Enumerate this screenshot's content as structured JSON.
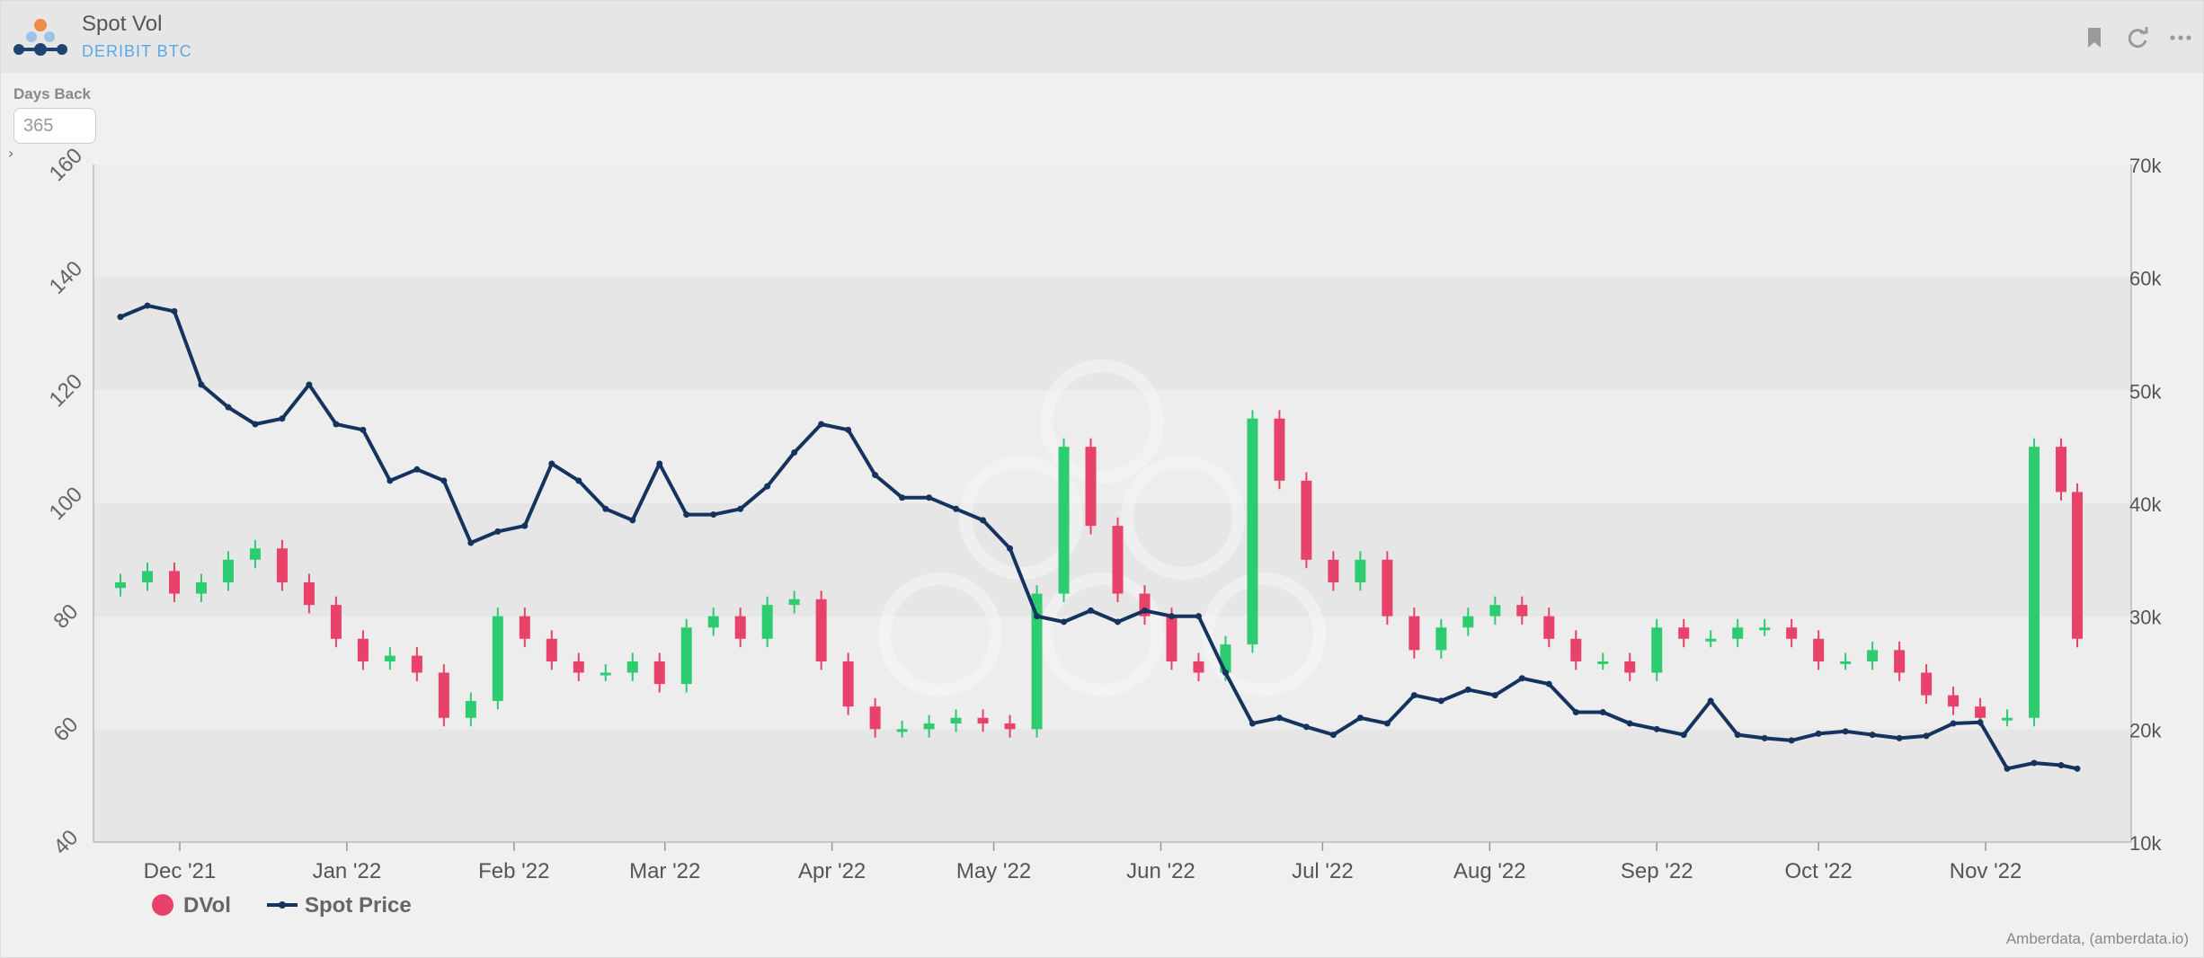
{
  "header": {
    "title": "Spot Vol",
    "subtitle": "DERIBIT BTC",
    "icons": [
      "bookmark-icon",
      "refresh-icon",
      "more-icon"
    ]
  },
  "controls": {
    "days_back_label": "Days Back",
    "days_back_value": "365"
  },
  "credit": "Amberdata, (amberdata.io)",
  "colors": {
    "up": "#2ecc71",
    "down": "#e8416a",
    "spot_line": "#14335e",
    "band": "#e6e6e6",
    "plot_bg": "#ededed"
  },
  "chart_data": {
    "type": "candlestick+line",
    "title": "",
    "y_left": {
      "range": [
        40,
        160
      ],
      "ticks": [
        40,
        60,
        80,
        100,
        120,
        140,
        160
      ]
    },
    "y_right": {
      "range": [
        10000,
        70000
      ],
      "ticks": [
        "10k",
        "20k",
        "30k",
        "40k",
        "50k",
        "60k",
        "70k"
      ]
    },
    "x_ticks": [
      {
        "label": "Dec '21",
        "date": "2021-12-01"
      },
      {
        "label": "Jan '22",
        "date": "2022-01-01"
      },
      {
        "label": "Feb '22",
        "date": "2022-02-01"
      },
      {
        "label": "Mar '22",
        "date": "2022-03-01"
      },
      {
        "label": "Apr '22",
        "date": "2022-04-01"
      },
      {
        "label": "May '22",
        "date": "2022-05-01"
      },
      {
        "label": "Jun '22",
        "date": "2022-06-01"
      },
      {
        "label": "Jul '22",
        "date": "2022-07-01"
      },
      {
        "label": "Aug '22",
        "date": "2022-08-01"
      },
      {
        "label": "Sep '22",
        "date": "2022-09-01"
      },
      {
        "label": "Oct '22",
        "date": "2022-10-01"
      },
      {
        "label": "Nov '22",
        "date": "2022-11-01"
      }
    ],
    "legend": [
      {
        "name": "DVol",
        "marker": "circle"
      },
      {
        "name": "Spot Price",
        "marker": "line"
      }
    ],
    "dvol_series": {
      "name": "DVol",
      "dates": [
        "2021-11-20",
        "2021-11-25",
        "2021-11-30",
        "2021-12-05",
        "2021-12-10",
        "2021-12-15",
        "2021-12-20",
        "2021-12-25",
        "2021-12-30",
        "2022-01-04",
        "2022-01-09",
        "2022-01-14",
        "2022-01-19",
        "2022-01-24",
        "2022-01-29",
        "2022-02-03",
        "2022-02-08",
        "2022-02-13",
        "2022-02-18",
        "2022-02-23",
        "2022-02-28",
        "2022-03-05",
        "2022-03-10",
        "2022-03-15",
        "2022-03-20",
        "2022-03-25",
        "2022-03-30",
        "2022-04-04",
        "2022-04-09",
        "2022-04-14",
        "2022-04-19",
        "2022-04-24",
        "2022-04-29",
        "2022-05-04",
        "2022-05-09",
        "2022-05-14",
        "2022-05-19",
        "2022-05-24",
        "2022-05-29",
        "2022-06-03",
        "2022-06-08",
        "2022-06-13",
        "2022-06-18",
        "2022-06-23",
        "2022-06-28",
        "2022-07-03",
        "2022-07-08",
        "2022-07-13",
        "2022-07-18",
        "2022-07-23",
        "2022-07-28",
        "2022-08-02",
        "2022-08-07",
        "2022-08-12",
        "2022-08-17",
        "2022-08-22",
        "2022-08-27",
        "2022-09-01",
        "2022-09-06",
        "2022-09-11",
        "2022-09-16",
        "2022-09-21",
        "2022-09-26",
        "2022-10-01",
        "2022-10-06",
        "2022-10-11",
        "2022-10-16",
        "2022-10-21",
        "2022-10-26",
        "2022-10-31",
        "2022-11-05",
        "2022-11-10",
        "2022-11-15",
        "2022-11-18"
      ],
      "values": [
        86,
        88,
        84,
        86,
        90,
        92,
        86,
        82,
        76,
        72,
        73,
        70,
        62,
        65,
        80,
        76,
        72,
        70,
        70,
        72,
        68,
        78,
        80,
        76,
        82,
        83,
        72,
        64,
        60,
        60,
        61,
        62,
        61,
        60,
        84,
        110,
        96,
        84,
        80,
        72,
        70,
        75,
        115,
        104,
        90,
        86,
        90,
        80,
        74,
        78,
        80,
        82,
        80,
        76,
        72,
        72,
        70,
        78,
        76,
        76,
        78,
        78,
        76,
        72,
        72,
        74,
        70,
        66,
        64,
        62,
        62,
        110,
        102,
        76
      ]
    },
    "spot_series": {
      "name": "Spot Price",
      "dates": [
        "2021-11-20",
        "2021-11-25",
        "2021-11-30",
        "2021-12-05",
        "2021-12-10",
        "2021-12-15",
        "2021-12-20",
        "2021-12-25",
        "2021-12-30",
        "2022-01-04",
        "2022-01-09",
        "2022-01-14",
        "2022-01-19",
        "2022-01-24",
        "2022-01-29",
        "2022-02-03",
        "2022-02-08",
        "2022-02-13",
        "2022-02-18",
        "2022-02-23",
        "2022-02-28",
        "2022-03-05",
        "2022-03-10",
        "2022-03-15",
        "2022-03-20",
        "2022-03-25",
        "2022-03-30",
        "2022-04-04",
        "2022-04-09",
        "2022-04-14",
        "2022-04-19",
        "2022-04-24",
        "2022-04-29",
        "2022-05-04",
        "2022-05-09",
        "2022-05-14",
        "2022-05-19",
        "2022-05-24",
        "2022-05-29",
        "2022-06-03",
        "2022-06-08",
        "2022-06-13",
        "2022-06-18",
        "2022-06-23",
        "2022-06-28",
        "2022-07-03",
        "2022-07-08",
        "2022-07-13",
        "2022-07-18",
        "2022-07-23",
        "2022-07-28",
        "2022-08-02",
        "2022-08-07",
        "2022-08-12",
        "2022-08-17",
        "2022-08-22",
        "2022-08-27",
        "2022-09-01",
        "2022-09-06",
        "2022-09-11",
        "2022-09-16",
        "2022-09-21",
        "2022-09-26",
        "2022-10-01",
        "2022-10-06",
        "2022-10-11",
        "2022-10-16",
        "2022-10-21",
        "2022-10-26",
        "2022-10-31",
        "2022-11-05",
        "2022-11-10",
        "2022-11-15",
        "2022-11-18"
      ],
      "values": [
        56500,
        57500,
        57000,
        50500,
        48500,
        47000,
        47500,
        50500,
        47000,
        46500,
        42000,
        43000,
        42000,
        36500,
        37500,
        38000,
        43500,
        42000,
        39500,
        38500,
        43500,
        39000,
        39000,
        39500,
        41500,
        44500,
        47000,
        46500,
        42500,
        40500,
        40500,
        39500,
        38500,
        36000,
        30000,
        29500,
        30500,
        29500,
        30500,
        30000,
        30000,
        25000,
        20500,
        21000,
        20200,
        19500,
        21000,
        20500,
        23000,
        22500,
        23500,
        23000,
        24500,
        24000,
        21500,
        21500,
        20500,
        20000,
        19500,
        22500,
        19500,
        19200,
        19000,
        19600,
        19800,
        19500,
        19200,
        19400,
        20500,
        20600,
        16500,
        17000,
        16800,
        16500
      ]
    }
  }
}
